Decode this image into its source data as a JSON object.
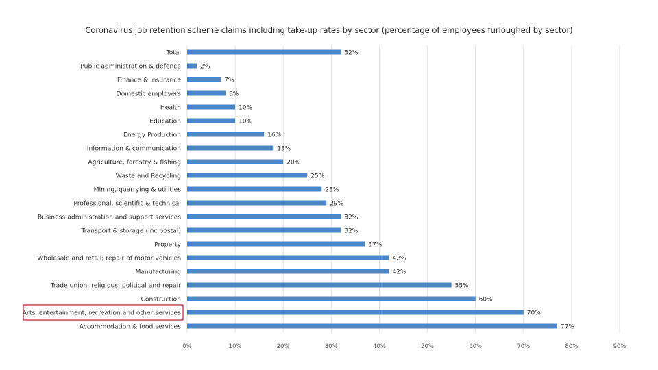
{
  "chart_data": {
    "type": "bar",
    "orientation": "horizontal",
    "title": "Coronavirus job retention scheme claims including take-up rates by sector (percentage of employees furloughed by sector)",
    "xlabel": "",
    "ylabel": "",
    "xlim": [
      0,
      90
    ],
    "x_ticks": [
      "0%",
      "10%",
      "20%",
      "30%",
      "40%",
      "50%",
      "60%",
      "70%",
      "80%",
      "90%"
    ],
    "grid": true,
    "bar_color": "#4a86c8",
    "highlight_color": "#b8232b",
    "highlighted_category": "Arts, entertainment, recreation and other services",
    "categories": [
      "Total",
      "Public administration & defence",
      "Finance & insurance",
      "Domestic employers",
      "Health",
      "Education",
      "Energy Production",
      "Information & communication",
      "Agriculture, forestry & fishing",
      "Waste and Recycling",
      "Mining, quarrying & utilities",
      "Professional, scientific & technical",
      "Business administration and support services",
      "Transport & storage (inc postal)",
      "Property",
      "Wholesale and retail; repair of motor vehicles",
      "Manufacturing",
      "Trade union, religious, political and repair",
      "Construction",
      "Arts, entertainment, recreation and other services",
      "Accommodation & food services"
    ],
    "values": [
      32,
      2,
      7,
      8,
      10,
      10,
      16,
      18,
      20,
      25,
      28,
      29,
      32,
      32,
      37,
      42,
      42,
      55,
      60,
      70,
      77
    ],
    "data_labels": [
      "32%",
      "2%",
      "7%",
      "8%",
      "10%",
      "10%",
      "16%",
      "18%",
      "20%",
      "25%",
      "28%",
      "29%",
      "32%",
      "32%",
      "37%",
      "42%",
      "42%",
      "55%",
      "60%",
      "70%",
      "77%"
    ]
  }
}
